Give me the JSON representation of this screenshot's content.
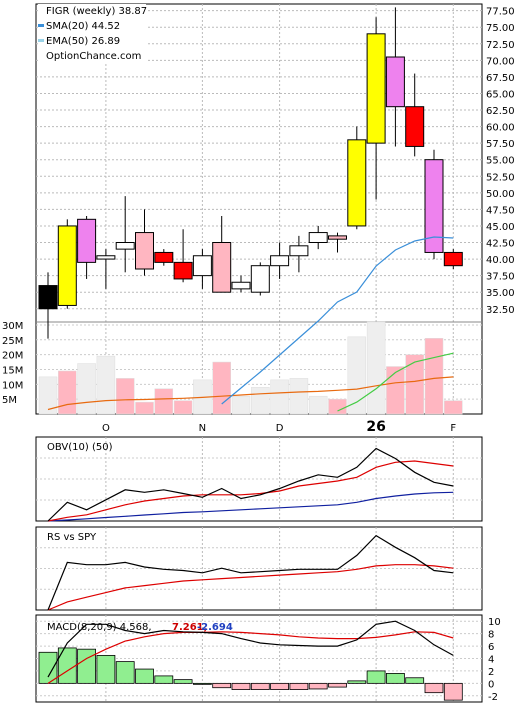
{
  "chart_data": {
    "type": "candlestick",
    "legend": {
      "ticker_line": "FIGR (weekly) 38.87",
      "sma_line": "SMA(20) 44.52",
      "ema_line": "EMA(50) 26.89",
      "source": "OptionChance.com"
    },
    "colors": {
      "sma": "#3a8fd9",
      "ema": "#9ad3e8",
      "volume_ma_orange": "#e86a10",
      "volume_ma_green": "#44cc44",
      "obv_black": "#000000",
      "obv_red": "#dd0000",
      "obv_blue": "#1020a0",
      "macd_positive": "#90ee90",
      "macd_negative": "#ffb6c1",
      "macd_value_red": "#cc0000",
      "macd_value_blue": "#2040c0"
    },
    "price_axis": {
      "ticks": [
        "77.50",
        "75.00",
        "72.50",
        "70.00",
        "67.50",
        "65.00",
        "62.50",
        "60.00",
        "57.50",
        "55.00",
        "52.50",
        "50.00",
        "47.50",
        "45.00",
        "42.50",
        "40.00",
        "37.50",
        "35.00",
        "32.50"
      ],
      "range": [
        30.5,
        78.5
      ]
    },
    "candles": [
      {
        "o": 36.0,
        "h": 38.0,
        "l": 28.0,
        "c": 32.5,
        "fill": "#000000"
      },
      {
        "o": 33.0,
        "h": 46.0,
        "l": 32.5,
        "c": 45.0,
        "fill": "#ffff00"
      },
      {
        "o": 46.0,
        "h": 46.5,
        "l": 37.0,
        "c": 39.5,
        "fill": "#ee82ee"
      },
      {
        "o": 40.0,
        "h": 41.5,
        "l": 35.5,
        "c": 40.5,
        "fill": "#ffffff"
      },
      {
        "o": 41.5,
        "h": 49.5,
        "l": 38.0,
        "c": 42.5,
        "fill": "#ffffff"
      },
      {
        "o": 44.0,
        "h": 47.5,
        "l": 37.5,
        "c": 38.5,
        "fill": "#ffb6c1"
      },
      {
        "o": 41.0,
        "h": 41.5,
        "l": 39.0,
        "c": 39.5,
        "fill": "#ff0000"
      },
      {
        "o": 39.5,
        "h": 44.5,
        "l": 36.5,
        "c": 37.0,
        "fill": "#ff0000"
      },
      {
        "o": 37.5,
        "h": 41.5,
        "l": 35.5,
        "c": 40.5,
        "fill": "#ffffff"
      },
      {
        "o": 42.5,
        "h": 46.5,
        "l": 35.0,
        "c": 35.0,
        "fill": "#ffb6c1"
      },
      {
        "o": 35.5,
        "h": 37.5,
        "l": 35.0,
        "c": 36.5,
        "fill": "#ffffff"
      },
      {
        "o": 35.0,
        "h": 39.5,
        "l": 34.5,
        "c": 39.0,
        "fill": "#ffffff"
      },
      {
        "o": 39.0,
        "h": 42.5,
        "l": 37.0,
        "c": 40.5,
        "fill": "#ffffff"
      },
      {
        "o": 40.5,
        "h": 43.5,
        "l": 38.0,
        "c": 42.0,
        "fill": "#ffffff"
      },
      {
        "o": 42.5,
        "h": 45.0,
        "l": 41.5,
        "c": 44.0,
        "fill": "#ffffff"
      },
      {
        "o": 43.5,
        "h": 44.0,
        "l": 41.0,
        "c": 43.0,
        "fill": "#ffb6c1"
      },
      {
        "o": 45.0,
        "h": 60.0,
        "l": 44.5,
        "c": 58.0,
        "fill": "#ffff00"
      },
      {
        "o": 57.5,
        "h": 76.5,
        "l": 49.0,
        "c": 74.0,
        "fill": "#ffff00"
      },
      {
        "o": 70.5,
        "h": 78.0,
        "l": 57.0,
        "c": 63.0,
        "fill": "#ee82ee"
      },
      {
        "o": 63.0,
        "h": 68.0,
        "l": 55.5,
        "c": 57.0,
        "fill": "#ff0000"
      },
      {
        "o": 55.0,
        "h": 56.5,
        "l": 40.0,
        "c": 41.0,
        "fill": "#ee82ee"
      },
      {
        "o": 41.0,
        "h": 41.5,
        "l": 38.5,
        "c": 39.0,
        "fill": "#ff0000"
      }
    ],
    "sma20": [
      null,
      null,
      null,
      null,
      null,
      null,
      null,
      null,
      null,
      null,
      null,
      null,
      null,
      null,
      null,
      null,
      null,
      null,
      null,
      40.5,
      44.8,
      44.5
    ],
    "x_labels": [
      {
        "label": "O",
        "index": 3
      },
      {
        "label": "N",
        "index": 8
      },
      {
        "label": "D",
        "index": 12
      },
      {
        "label": "26",
        "index": 17
      },
      {
        "label": "F",
        "index": 21
      }
    ],
    "volume": {
      "ticks": [
        "30M",
        "25M",
        "20M",
        "15M",
        "10M",
        "5M"
      ],
      "range": [
        0,
        31
      ],
      "bars": [
        12.5,
        14.5,
        17,
        19.5,
        12,
        4,
        8.5,
        4.5,
        11.5,
        17.5,
        6,
        9,
        11.5,
        12,
        6,
        5,
        26,
        31,
        16,
        20,
        25.5,
        4.5
      ],
      "bar_colors": [
        "#eeeeee",
        "#ffb6c1",
        "#eeeeee",
        "#eeeeee",
        "#ffb6c1",
        "#ffb6c1",
        "#ffb6c1",
        "#ffb6c1",
        "#eeeeee",
        "#ffb6c1",
        "#eeeeee",
        "#eeeeee",
        "#eeeeee",
        "#eeeeee",
        "#eeeeee",
        "#ffb6c1",
        "#eeeeee",
        "#eeeeee",
        "#ffb6c1",
        "#ffb6c1",
        "#ffb6c1",
        "#ffb6c1"
      ],
      "ma_orange": [
        1.5,
        3.2,
        3.9,
        4.5,
        4.8,
        4.9,
        5.1,
        5.3,
        5.6,
        6.0,
        6.4,
        6.8,
        7.1,
        7.4,
        7.6,
        8.0,
        8.4,
        9.5,
        10.5,
        11.0,
        12.0,
        12.5
      ],
      "ma_green": [
        null,
        null,
        null,
        null,
        null,
        null,
        null,
        null,
        null,
        null,
        null,
        null,
        null,
        null,
        null,
        1.0,
        4.0,
        8.5,
        14.0,
        17.5,
        19.0,
        20.5
      ]
    },
    "obv": {
      "title": "OBV(10) (50)",
      "black": [
        0,
        7.5,
        4.5,
        8.5,
        12.5,
        11.5,
        12.5,
        11.0,
        9.5,
        13.0,
        9.0,
        10.5,
        13.0,
        16.0,
        18.5,
        17.5,
        21.5,
        29.0,
        25.0,
        19.5,
        15.5,
        14.0
      ],
      "red": [
        0,
        1.5,
        2.5,
        4.5,
        6.5,
        8.0,
        9.0,
        10.0,
        10.5,
        10.5,
        10.5,
        11.0,
        12.0,
        14.0,
        15.0,
        16.0,
        17.5,
        21.5,
        23.5,
        24.0,
        23.0,
        22.0
      ],
      "blue": [
        0,
        0.4,
        0.9,
        1.4,
        1.9,
        2.4,
        2.9,
        3.4,
        3.7,
        4.1,
        4.5,
        4.9,
        5.3,
        5.7,
        6.1,
        6.5,
        7.5,
        9.0,
        10.0,
        10.8,
        11.3,
        11.5
      ],
      "range": [
        0,
        32
      ]
    },
    "rs": {
      "title": "RS vs SPY",
      "black": [
        0,
        20.5,
        19.5,
        19.5,
        20.5,
        18.5,
        17.5,
        17.0,
        16.0,
        18.0,
        16.0,
        16.5,
        17.0,
        17.5,
        17.5,
        17.5,
        23.5,
        32.0,
        27.0,
        22.5,
        17.0,
        16.0
      ],
      "red": [
        0,
        3.5,
        5.5,
        7.5,
        9.5,
        10.5,
        11.5,
        12.5,
        13.0,
        13.5,
        14.0,
        14.5,
        15.0,
        15.5,
        16.0,
        16.5,
        17.5,
        19.0,
        19.5,
        19.5,
        19.0,
        18.0
      ],
      "range": [
        0,
        34
      ]
    },
    "macd": {
      "title": "MACD(8,20,9) 4.568,",
      "signal_value": "7.261,",
      "hist_value": "-2.694",
      "ticks": [
        "10",
        "8",
        "6",
        "4",
        "2",
        "0",
        "-2"
      ],
      "range": [
        -3,
        11
      ],
      "histogram": [
        5.0,
        5.7,
        5.5,
        4.5,
        3.5,
        2.3,
        1.2,
        0.6,
        0.0,
        -0.7,
        -1.0,
        -1.0,
        -1.0,
        -1.0,
        -0.9,
        -0.6,
        0.4,
        2.0,
        1.6,
        0.9,
        -1.5,
        -2.7
      ],
      "macd_line": [
        1.0,
        6.5,
        9.5,
        9.5,
        8.5,
        8.0,
        8.5,
        8.3,
        8.2,
        8.0,
        7.2,
        6.5,
        6.2,
        6.1,
        6.0,
        6.0,
        7.0,
        9.5,
        10.0,
        8.5,
        6.2,
        4.5
      ],
      "signal_line": [
        0.0,
        2.0,
        4.0,
        5.5,
        6.8,
        7.5,
        8.0,
        8.2,
        8.2,
        8.3,
        8.2,
        8.0,
        7.8,
        7.5,
        7.3,
        7.2,
        7.2,
        7.4,
        7.8,
        8.3,
        8.2,
        7.3
      ]
    }
  }
}
